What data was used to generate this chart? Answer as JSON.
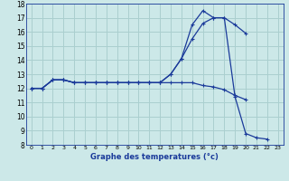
{
  "title": "Graphe des temperatures (°c)",
  "bg_color": "#cce8e8",
  "grid_color": "#aacfcf",
  "line_color": "#1a3a9a",
  "xlim": [
    -0.5,
    23.5
  ],
  "ylim": [
    8,
    18
  ],
  "yticks": [
    8,
    9,
    10,
    11,
    12,
    13,
    14,
    15,
    16,
    17,
    18
  ],
  "xticks": [
    0,
    1,
    2,
    3,
    4,
    5,
    6,
    7,
    8,
    9,
    10,
    11,
    12,
    13,
    14,
    15,
    16,
    17,
    18,
    19,
    20,
    21,
    22,
    23
  ],
  "line_max_x": [
    0,
    1,
    2,
    3,
    4,
    5,
    6,
    7,
    8,
    9,
    10,
    11,
    12,
    13,
    14,
    15,
    16,
    17,
    18,
    19,
    20,
    21,
    22
  ],
  "line_max_y": [
    12,
    12,
    12.6,
    12.6,
    12.4,
    12.4,
    12.4,
    12.4,
    12.4,
    12.4,
    12.4,
    12.4,
    12.4,
    13.0,
    14.1,
    16.5,
    17.5,
    17.0,
    17.0,
    11.4,
    8.8,
    8.5,
    8.4
  ],
  "line_mid_x": [
    0,
    1,
    2,
    3,
    4,
    5,
    6,
    7,
    8,
    9,
    10,
    11,
    12,
    13,
    14,
    15,
    16,
    17,
    18,
    19,
    20
  ],
  "line_mid_y": [
    12,
    12,
    12.6,
    12.6,
    12.4,
    12.4,
    12.4,
    12.4,
    12.4,
    12.4,
    12.4,
    12.4,
    12.4,
    13.0,
    14.1,
    15.5,
    16.6,
    17.0,
    17.0,
    16.5,
    15.9
  ],
  "line_min_x": [
    0,
    1,
    2,
    3,
    4,
    5,
    6,
    7,
    8,
    9,
    10,
    11,
    12,
    13,
    14,
    15,
    16,
    17,
    18,
    19,
    20
  ],
  "line_min_y": [
    12,
    12,
    12.6,
    12.6,
    12.4,
    12.4,
    12.4,
    12.4,
    12.4,
    12.4,
    12.4,
    12.4,
    12.4,
    12.4,
    12.4,
    12.4,
    12.2,
    12.1,
    11.9,
    11.5,
    11.2
  ]
}
